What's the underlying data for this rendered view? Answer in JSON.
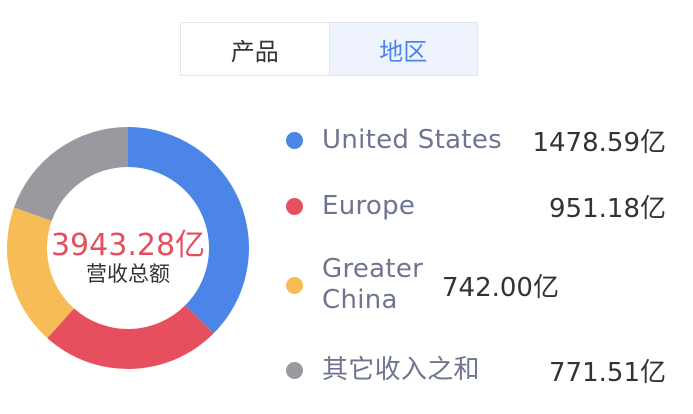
{
  "tabs": [
    {
      "label": "产品",
      "active": false
    },
    {
      "label": "地区",
      "active": true
    }
  ],
  "chart_data": {
    "type": "pie",
    "total_value": "3943.28亿",
    "total_caption": "营收总额",
    "series": [
      {
        "name": "United States",
        "value": 1478.59,
        "display": "1478.59亿",
        "color": "#4b85e8"
      },
      {
        "name": "Europe",
        "value": 951.18,
        "display": "951.18亿",
        "color": "#e64f5e"
      },
      {
        "name": "Greater China",
        "value": 742.0,
        "display": "742.00亿",
        "color": "#f7bc55"
      },
      {
        "name": "其它收入之和",
        "value": 771.51,
        "display": "771.51亿",
        "color": "#9c989f"
      }
    ]
  }
}
